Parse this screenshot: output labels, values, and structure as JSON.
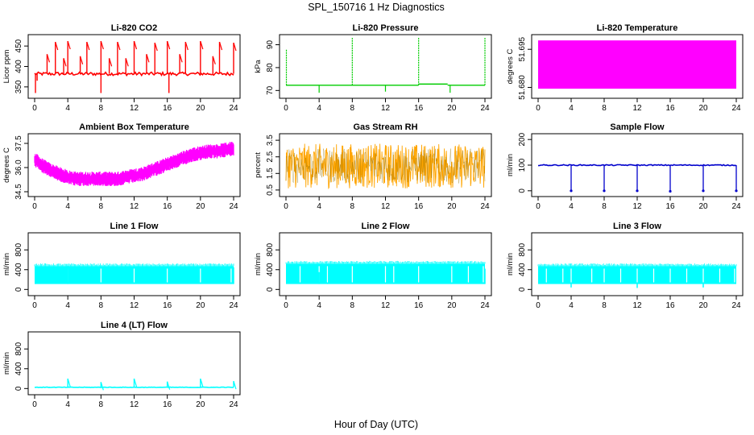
{
  "figure": {
    "title": "SPL_150716  1 Hz Diagnostics",
    "xlabel": "Hour of Day (UTC)"
  },
  "chart_data": [
    {
      "type": "line",
      "title": "Li-820 CO2",
      "ylabel": "Licor ppm",
      "color": "#ff0000",
      "xlim": [
        0,
        24
      ],
      "ylim": [
        330,
        470
      ],
      "xticks": [
        "0",
        "4",
        "8",
        "12",
        "16",
        "20",
        "24"
      ],
      "yticks": [
        {
          "v": 350,
          "t": "350"
        },
        {
          "v": 400,
          "t": "400"
        },
        {
          "v": 450,
          "t": "450"
        }
      ],
      "style": "baseline-spikes",
      "series": [
        {
          "base": 382,
          "noise": 4,
          "spikes": [
            {
              "x": 1.5,
              "y": 430
            },
            {
              "x": 2.5,
              "y": 460
            },
            {
              "x": 3.5,
              "y": 420
            },
            {
              "x": 4.0,
              "y": 462
            },
            {
              "x": 5.5,
              "y": 425
            },
            {
              "x": 6.3,
              "y": 460
            },
            {
              "x": 8.0,
              "y": 462
            },
            {
              "x": 8.0,
              "y": 335
            },
            {
              "x": 9.0,
              "y": 420
            },
            {
              "x": 10.0,
              "y": 460
            },
            {
              "x": 11.0,
              "y": 420
            },
            {
              "x": 12.0,
              "y": 462
            },
            {
              "x": 13.5,
              "y": 430
            },
            {
              "x": 14.5,
              "y": 458
            },
            {
              "x": 16.0,
              "y": 462
            },
            {
              "x": 16.2,
              "y": 335
            },
            {
              "x": 17.5,
              "y": 430
            },
            {
              "x": 18.2,
              "y": 460
            },
            {
              "x": 20.0,
              "y": 462
            },
            {
              "x": 21.5,
              "y": 425
            },
            {
              "x": 22.3,
              "y": 460
            },
            {
              "x": 24.0,
              "y": 458
            },
            {
              "x": 0.1,
              "y": 335
            },
            {
              "x": 0.3,
              "y": 365
            }
          ]
        }
      ]
    },
    {
      "type": "line",
      "title": "Li-820 Pressure",
      "ylabel": "kPa",
      "color": "#00cc00",
      "xlim": [
        0,
        24
      ],
      "ylim": [
        68,
        93
      ],
      "xticks": [
        "0",
        "4",
        "8",
        "12",
        "16",
        "20",
        "24"
      ],
      "yticks": [
        {
          "v": 70,
          "t": "70"
        },
        {
          "v": 80,
          "t": "80"
        },
        {
          "v": 90,
          "t": "90"
        }
      ],
      "style": "step-spikes",
      "series": [
        {
          "segments": [
            {
              "x0": 0,
              "x1": 16,
              "y": 72.3
            },
            {
              "x0": 16,
              "x1": 19.5,
              "y": 72.8
            },
            {
              "x0": 19.5,
              "x1": 24,
              "y": 72.3
            }
          ],
          "spikes": [
            {
              "x": 0.05,
              "y": 88
            },
            {
              "x": 4.0,
              "y": 69
            },
            {
              "x": 8.0,
              "y": 93
            },
            {
              "x": 12.0,
              "y": 69.5
            },
            {
              "x": 16.0,
              "y": 93
            },
            {
              "x": 19.8,
              "y": 69
            },
            {
              "x": 24.0,
              "y": 93
            }
          ]
        }
      ]
    },
    {
      "type": "area",
      "title": "Li-820 Temperature",
      "ylabel": "degrees C",
      "color": "#ff00ff",
      "xlim": [
        0,
        24
      ],
      "ylim": [
        51.677,
        51.6995
      ],
      "xticks": [
        "0",
        "4",
        "8",
        "12",
        "16",
        "20",
        "24"
      ],
      "yticks": [
        {
          "v": 51.68,
          "t": "51.680"
        },
        {
          "v": 51.695,
          "t": "51.695"
        }
      ],
      "style": "band",
      "series": [
        {
          "low": 51.6795,
          "high": 51.6985
        }
      ]
    },
    {
      "type": "line",
      "title": "Ambient Box Temperature",
      "ylabel": "degrees C",
      "color": "#ff00ff",
      "xlim": [
        0,
        24
      ],
      "ylim": [
        34.4,
        37.9
      ],
      "xticks": [
        "0",
        "4",
        "8",
        "12",
        "16",
        "20",
        "24"
      ],
      "yticks": [
        {
          "v": 34.5,
          "t": "34.5"
        },
        {
          "v": 36.0,
          "t": "36.0"
        },
        {
          "v": 37.5,
          "t": "37.5"
        }
      ],
      "style": "noisy-band",
      "series": [
        {
          "x": [
            0,
            1,
            2,
            3,
            4,
            5,
            6,
            7,
            8,
            9,
            10,
            11,
            12,
            13,
            14,
            15,
            16,
            17,
            18,
            19,
            20,
            21,
            22,
            23,
            24
          ],
          "center": [
            36.5,
            36.1,
            35.8,
            35.6,
            35.4,
            35.3,
            35.3,
            35.3,
            35.3,
            35.3,
            35.3,
            35.4,
            35.5,
            35.6,
            35.8,
            36.0,
            36.2,
            36.4,
            36.6,
            36.8,
            36.9,
            37.0,
            37.0,
            37.1,
            37.2
          ],
          "spread": 0.45
        }
      ]
    },
    {
      "type": "line",
      "title": "Gas Stream RH",
      "ylabel": "percent",
      "color": "#ffa500",
      "xlim": [
        0,
        24
      ],
      "ylim": [
        0.3,
        3.7
      ],
      "xticks": [
        "0",
        "4",
        "8",
        "12",
        "16",
        "20",
        "24"
      ],
      "yticks": [
        {
          "v": 0.5,
          "t": "0.5"
        },
        {
          "v": 1.5,
          "t": "1.5"
        },
        {
          "v": 2.5,
          "t": "2.5"
        },
        {
          "v": 3.5,
          "t": "3.5"
        }
      ],
      "style": "noise-fill",
      "series": [
        {
          "low": 0.6,
          "high": 3.3
        }
      ]
    },
    {
      "type": "line",
      "title": "Sample Flow",
      "ylabel": "ml/min",
      "color": "#0000cc",
      "xlim": [
        0,
        24
      ],
      "ylim": [
        -10,
        210
      ],
      "xticks": [
        "0",
        "4",
        "8",
        "12",
        "16",
        "20",
        "24"
      ],
      "yticks": [
        {
          "v": 0,
          "t": "0"
        },
        {
          "v": 100,
          "t": "100"
        },
        {
          "v": 200,
          "t": "200"
        }
      ],
      "style": "baseline-dips",
      "series": [
        {
          "base": 100,
          "noise": 2,
          "dips": [
            {
              "x": 4,
              "y": 0
            },
            {
              "x": 8,
              "y": 0
            },
            {
              "x": 12,
              "y": 0
            },
            {
              "x": 16,
              "y": -2
            },
            {
              "x": 20,
              "y": 0
            },
            {
              "x": 24,
              "y": 0
            }
          ]
        }
      ]
    },
    {
      "type": "area",
      "title": "Line 1 Flow",
      "ylabel": "ml/min",
      "color": "#00ffff",
      "xlim": [
        0,
        24
      ],
      "ylim": [
        -60,
        1080
      ],
      "xticks": [
        "0",
        "4",
        "8",
        "12",
        "16",
        "20",
        "24"
      ],
      "yticks": [
        {
          "v": 0,
          "t": "0"
        },
        {
          "v": 400,
          "t": "400"
        },
        {
          "v": 800,
          "t": "800"
        }
      ],
      "style": "band-gaps",
      "series": [
        {
          "low": 110,
          "high": 470,
          "gaps": [
            4,
            8,
            12,
            16,
            20,
            23.7
          ],
          "peaks": [
            {
              "x": 4,
              "y": 480
            },
            {
              "x": 24,
              "y": 450
            }
          ]
        }
      ]
    },
    {
      "type": "area",
      "title": "Line 2 Flow",
      "ylabel": "ml/min",
      "color": "#00ffff",
      "xlim": [
        0,
        24
      ],
      "ylim": [
        -60,
        1080
      ],
      "xticks": [
        "0",
        "4",
        "8",
        "12",
        "16",
        "20",
        "24"
      ],
      "yticks": [
        {
          "v": 0,
          "t": "0"
        },
        {
          "v": 400,
          "t": "400"
        },
        {
          "v": 800,
          "t": "800"
        }
      ],
      "style": "band-gaps",
      "series": [
        {
          "low": 110,
          "high": 520,
          "gaps": [
            1.7,
            4,
            5,
            8,
            12,
            13,
            16,
            20,
            22,
            23.8
          ],
          "peaks": [
            {
              "x": 4,
              "y": 350
            },
            {
              "x": 24,
              "y": 420
            }
          ]
        }
      ]
    },
    {
      "type": "area",
      "title": "Line 3 Flow",
      "ylabel": "ml/min",
      "color": "#00ffff",
      "xlim": [
        0,
        24
      ],
      "ylim": [
        -60,
        1080
      ],
      "xticks": [
        "0",
        "4",
        "8",
        "12",
        "16",
        "20",
        "24"
      ],
      "yticks": [
        {
          "v": 0,
          "t": "0"
        },
        {
          "v": 400,
          "t": "400"
        },
        {
          "v": 800,
          "t": "800"
        }
      ],
      "style": "band-gaps",
      "series": [
        {
          "low": 110,
          "high": 470,
          "gaps": [
            1,
            3,
            4,
            6.5,
            8,
            10,
            12,
            14,
            16,
            18,
            20,
            22,
            23.8
          ],
          "dips": [
            {
              "x": 4,
              "y": 40
            },
            {
              "x": 12,
              "y": 30
            },
            {
              "x": 20,
              "y": 40
            }
          ]
        }
      ]
    },
    {
      "type": "line",
      "title": "Line 4 (LT) Flow",
      "ylabel": "ml/min",
      "color": "#00ffff",
      "xlim": [
        0,
        24
      ],
      "ylim": [
        -60,
        1080
      ],
      "xticks": [
        "0",
        "4",
        "8",
        "12",
        "16",
        "20",
        "24"
      ],
      "yticks": [
        {
          "v": 0,
          "t": "0"
        },
        {
          "v": 400,
          "t": "400"
        },
        {
          "v": 800,
          "t": "800"
        }
      ],
      "style": "baseline-spikes",
      "series": [
        {
          "base": 25,
          "noise": 4,
          "spikes": [
            {
              "x": 4,
              "y": 200
            },
            {
              "x": 8,
              "y": 130
            },
            {
              "x": 12,
              "y": 200
            },
            {
              "x": 16,
              "y": 140
            },
            {
              "x": 20,
              "y": 200
            },
            {
              "x": 24,
              "y": 150
            }
          ]
        }
      ]
    }
  ]
}
